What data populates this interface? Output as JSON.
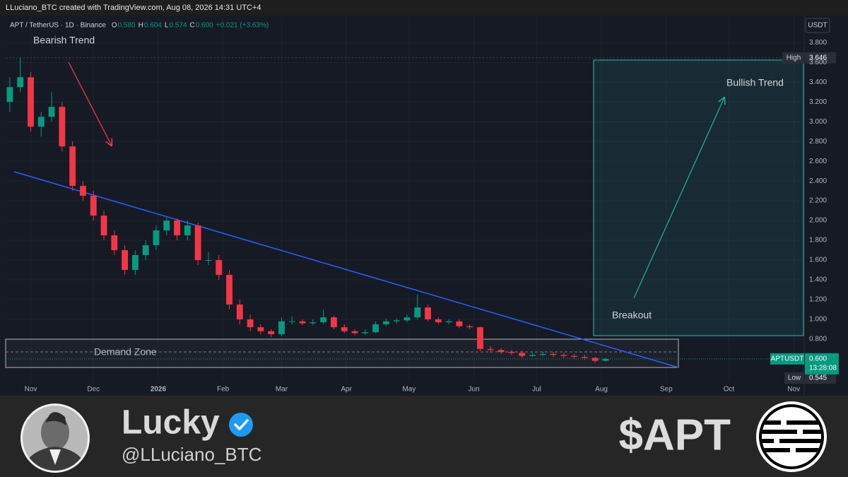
{
  "header": {
    "text": "LLuciano_BTC created with TradingView.com, Aug 08, 2026 14:31 UTC+4"
  },
  "chart_data": {
    "type": "candlestick",
    "title": "APT / TetherUS · 1D · Binance",
    "ohlc_legend": [
      {
        "label": "O",
        "text": "0.580"
      },
      {
        "label": "H",
        "text": "0.604"
      },
      {
        "label": "L",
        "text": "0.574"
      },
      {
        "label": "C",
        "text": "0.600"
      }
    ],
    "change": "+0.021 (+3.63%)",
    "currency": "USDT",
    "up_color": "#089981",
    "down_color": "#f23645",
    "x": [
      -10,
      -5,
      0,
      5,
      10,
      15,
      20,
      25,
      30,
      35,
      40,
      45,
      50,
      55,
      60,
      65,
      70,
      75,
      80,
      85,
      90,
      95,
      100,
      105,
      110,
      115,
      120,
      125,
      130,
      135,
      140,
      145,
      150,
      155,
      160,
      165,
      170,
      175,
      180,
      185,
      190,
      195,
      200,
      205,
      210,
      215,
      220,
      225,
      230,
      235,
      240,
      245,
      250,
      255,
      260,
      265,
      270,
      275
    ],
    "open": [
      3.2,
      3.35,
      3.45,
      2.95,
      3.05,
      3.15,
      2.75,
      2.35,
      2.25,
      2.05,
      1.85,
      1.7,
      1.5,
      1.65,
      1.75,
      1.9,
      2.0,
      1.85,
      1.95,
      1.6,
      1.6,
      1.45,
      1.15,
      1.0,
      0.92,
      0.88,
      0.85,
      0.98,
      0.98,
      0.96,
      0.97,
      1.02,
      0.92,
      0.88,
      0.86,
      0.87,
      0.95,
      0.98,
      0.99,
      1.02,
      1.12,
      1.0,
      0.97,
      0.98,
      0.93,
      0.92,
      0.7,
      0.69,
      0.67,
      0.66,
      0.63,
      0.64,
      0.65,
      0.64,
      0.63,
      0.62,
      0.61,
      0.58
    ],
    "high": [
      3.45,
      3.65,
      3.5,
      3.1,
      3.3,
      3.2,
      2.8,
      2.4,
      2.3,
      2.1,
      1.9,
      1.75,
      1.7,
      1.8,
      1.95,
      2.03,
      2.02,
      2.0,
      1.98,
      1.68,
      1.65,
      1.5,
      1.2,
      1.05,
      0.95,
      0.9,
      1.02,
      1.03,
      1.0,
      1.0,
      1.1,
      1.04,
      0.95,
      0.9,
      0.9,
      0.98,
      1.01,
      1.01,
      1.05,
      1.25,
      1.15,
      1.02,
      1.0,
      1.0,
      0.95,
      0.93,
      0.73,
      0.71,
      0.69,
      0.68,
      0.66,
      0.67,
      0.67,
      0.66,
      0.65,
      0.64,
      0.62,
      0.61
    ],
    "low": [
      3.1,
      3.3,
      2.9,
      2.85,
      3.0,
      2.7,
      2.3,
      2.2,
      2.0,
      1.8,
      1.65,
      1.45,
      1.45,
      1.6,
      1.7,
      1.85,
      1.8,
      1.8,
      1.55,
      1.55,
      1.4,
      1.1,
      0.95,
      0.88,
      0.85,
      0.82,
      0.83,
      0.95,
      0.94,
      0.94,
      0.95,
      0.9,
      0.86,
      0.84,
      0.84,
      0.86,
      0.93,
      0.96,
      0.97,
      1.0,
      0.98,
      0.95,
      0.95,
      0.91,
      0.9,
      0.68,
      0.66,
      0.65,
      0.64,
      0.61,
      0.62,
      0.63,
      0.62,
      0.61,
      0.6,
      0.59,
      0.56,
      0.57
    ],
    "close": [
      3.35,
      3.45,
      2.95,
      3.05,
      3.15,
      2.75,
      2.35,
      2.25,
      2.05,
      1.85,
      1.7,
      1.5,
      1.65,
      1.75,
      1.9,
      2.0,
      1.85,
      1.95,
      1.6,
      1.6,
      1.45,
      1.15,
      1.0,
      0.92,
      0.88,
      0.85,
      0.98,
      0.98,
      0.96,
      0.97,
      1.02,
      0.92,
      0.88,
      0.86,
      0.87,
      0.95,
      0.98,
      0.99,
      1.02,
      1.12,
      1.0,
      0.97,
      0.98,
      0.93,
      0.92,
      0.7,
      0.69,
      0.67,
      0.66,
      0.63,
      0.64,
      0.65,
      0.64,
      0.63,
      0.62,
      0.61,
      0.58,
      0.6
    ],
    "xlim": [
      -12,
      370
    ],
    "xticks": [
      {
        "value": 0,
        "label": "Nov"
      },
      {
        "value": 30,
        "label": "Dec"
      },
      {
        "value": 61,
        "label": "2026"
      },
      {
        "value": 92,
        "label": "Feb"
      },
      {
        "value": 120,
        "label": "Mar"
      },
      {
        "value": 151,
        "label": "Apr"
      },
      {
        "value": 181,
        "label": "May"
      },
      {
        "value": 212,
        "label": "Jun"
      },
      {
        "value": 242,
        "label": "Jul"
      },
      {
        "value": 273,
        "label": "Aug"
      },
      {
        "value": 304,
        "label": "Sep"
      },
      {
        "value": 334,
        "label": "Oct"
      },
      {
        "value": 365,
        "label": "Nov"
      }
    ],
    "ylim": [
      0.37,
      4.06
    ],
    "yticks": [
      {
        "value": 0.8,
        "label": "0.800"
      },
      {
        "value": 1.0,
        "label": "1.000"
      },
      {
        "value": 1.2,
        "label": "1.200"
      },
      {
        "value": 1.4,
        "label": "1.400"
      },
      {
        "value": 1.6,
        "label": "1.600"
      },
      {
        "value": 1.8,
        "label": "1.800"
      },
      {
        "value": 2.0,
        "label": "2.000"
      },
      {
        "value": 2.2,
        "label": "2.200"
      },
      {
        "value": 2.4,
        "label": "2.400"
      },
      {
        "value": 2.6,
        "label": "2.600"
      },
      {
        "value": 2.8,
        "label": "2.800"
      },
      {
        "value": 3.0,
        "label": "3.000"
      },
      {
        "value": 3.2,
        "label": "3.200"
      },
      {
        "value": 3.4,
        "label": "3.400"
      },
      {
        "value": 3.6,
        "label": "3.600"
      },
      {
        "value": 3.8,
        "label": "3.800"
      }
    ],
    "grid": true,
    "high_marker": {
      "label": "High",
      "value": 3.646
    },
    "low_marker": {
      "label": "Low",
      "value": 0.545
    },
    "last_price": {
      "label": "APTUSDT",
      "value": 0.6,
      "value_label": "0.600",
      "countdown": "13:28:08"
    },
    "annotations": {
      "bearish": "Bearish Trend",
      "demand": "Demand Zone",
      "breakout": "Breakout",
      "bullish": "Bullish Trend"
    }
  },
  "profile": {
    "name": "Lucky",
    "handle": "@LLuciano_BTC",
    "ticker": "$APT"
  }
}
